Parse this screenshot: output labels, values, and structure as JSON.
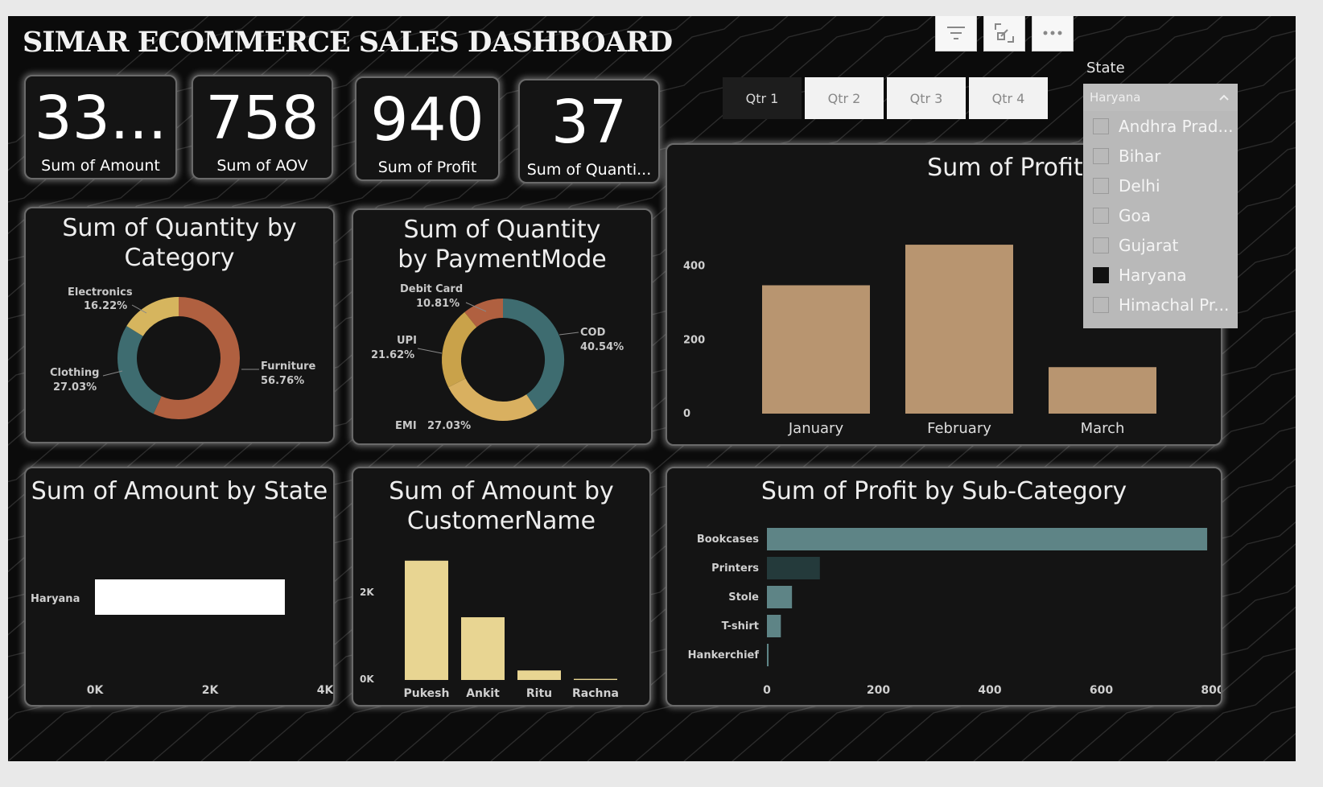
{
  "dashboard_title": "SIMAR ECOMMERCE SALES DASHBOARD",
  "toolbar": {
    "filter_icon": "filter-icon",
    "focus_icon": "focus-mode-icon",
    "more_icon": "more-options-icon"
  },
  "kpis": [
    {
      "value": "33...",
      "label": "Sum of Amount"
    },
    {
      "value": "758",
      "label": "Sum of AOV"
    },
    {
      "value": "940",
      "label": "Sum of Profit"
    },
    {
      "value": "37",
      "label": "Sum of Quanti..."
    }
  ],
  "quarter_slicer": {
    "options": [
      "Qtr 1",
      "Qtr 2",
      "Qtr 3",
      "Qtr 4"
    ],
    "selected": "Qtr 1"
  },
  "state_slicer": {
    "label": "State",
    "selected_value": "Haryana",
    "options": [
      {
        "label": "Andhra Prad...",
        "checked": false
      },
      {
        "label": "Bihar",
        "checked": false
      },
      {
        "label": "Delhi",
        "checked": false
      },
      {
        "label": "Goa",
        "checked": false
      },
      {
        "label": "Gujarat",
        "checked": false
      },
      {
        "label": "Haryana",
        "checked": true
      },
      {
        "label": "Himachal Pr...",
        "checked": false
      }
    ]
  },
  "colors": {
    "brown": "#b06040",
    "teal": "#3e6c70",
    "gold": "#d6b55e",
    "tan": "#b89570",
    "cream": "#e8d592",
    "slate": "#5e8486"
  },
  "chart_data": [
    {
      "id": "qty_by_category",
      "type": "pie",
      "title": "Sum of Quantity by Category",
      "slices": [
        {
          "name": "Furniture",
          "pct_label": "56.76%",
          "value": 56.76,
          "color": "#b06040"
        },
        {
          "name": "Clothing",
          "pct_label": "27.03%",
          "value": 27.03,
          "color": "#3e6c70"
        },
        {
          "name": "Electronics",
          "pct_label": "16.22%",
          "value": 16.22,
          "color": "#d6b55e"
        }
      ]
    },
    {
      "id": "qty_by_paymentmode",
      "type": "pie",
      "title": "Sum of Quantity by PaymentMode",
      "slices": [
        {
          "name": "COD",
          "pct_label": "40.54%",
          "value": 40.54,
          "color": "#3e6c70"
        },
        {
          "name": "EMI",
          "pct_label": "27.03%",
          "value": 27.03,
          "color": "#d9b060"
        },
        {
          "name": "UPI",
          "pct_label": "21.62%",
          "value": 21.62,
          "color": "#c9a24a"
        },
        {
          "name": "Debit Card",
          "pct_label": "10.81%",
          "value": 10.81,
          "color": "#b06040"
        }
      ]
    },
    {
      "id": "profit_by_month",
      "type": "bar",
      "title": "Sum of Profit by Mo",
      "categories": [
        "January",
        "February",
        "March"
      ],
      "values": [
        348,
        458,
        126
      ],
      "ylim": [
        0,
        480
      ],
      "yticks": [
        0,
        200,
        400
      ]
    },
    {
      "id": "amount_by_state",
      "type": "bar",
      "orientation": "horizontal",
      "title": "Sum of Amount by State",
      "categories": [
        "Haryana"
      ],
      "values": [
        3300
      ],
      "xlim": [
        0,
        4000
      ],
      "xticks": [
        "0K",
        "2K",
        "4K"
      ]
    },
    {
      "id": "amount_by_customer",
      "type": "bar",
      "title": "Sum of Amount by CustomerName",
      "categories": [
        "Pukesh",
        "Ankit",
        "Ritu",
        "Rachna"
      ],
      "values": [
        2130,
        1120,
        170,
        20
      ],
      "ylim": [
        0,
        2300
      ],
      "yticks": [
        "0K",
        "2K"
      ]
    },
    {
      "id": "profit_by_subcategory",
      "type": "bar",
      "orientation": "horizontal",
      "title": "Sum of Profit by Sub-Category",
      "categories": [
        "Bookcases",
        "Printers",
        "Stole",
        "T-shirt",
        "Hankerchief"
      ],
      "values": [
        790,
        95,
        45,
        25,
        3
      ],
      "xlim": [
        0,
        800
      ],
      "xticks": [
        0,
        200,
        400,
        600,
        800
      ]
    }
  ]
}
